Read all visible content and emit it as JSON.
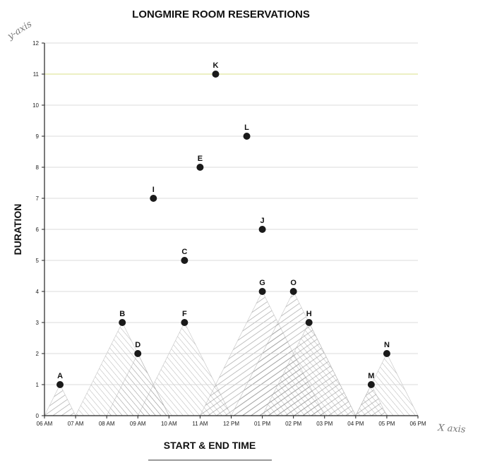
{
  "chart_data": {
    "type": "scatter",
    "title": "LONGMIRE ROOM RESERVATIONS",
    "xlabel": "START & END TIME",
    "ylabel": "DURATION",
    "x_ticks": [
      "06 AM",
      "07 AM",
      "08 AM",
      "09 AM",
      "10 AM",
      "11 AM",
      "12 PM",
      "01 PM",
      "02 PM",
      "03 PM",
      "04 PM",
      "05 PM",
      "06 PM"
    ],
    "xlim": [
      6,
      18
    ],
    "y_ticks": [
      0,
      1,
      2,
      3,
      4,
      5,
      6,
      7,
      8,
      9,
      10,
      11,
      12
    ],
    "ylim": [
      0,
      12
    ],
    "grid": "horizontal",
    "points": [
      {
        "label": "A",
        "x": 6.5,
        "y": 1
      },
      {
        "label": "B",
        "x": 8.5,
        "y": 3
      },
      {
        "label": "C",
        "x": 10.5,
        "y": 5
      },
      {
        "label": "D",
        "x": 9.0,
        "y": 2
      },
      {
        "label": "E",
        "x": 11.0,
        "y": 8
      },
      {
        "label": "F",
        "x": 10.5,
        "y": 3
      },
      {
        "label": "G",
        "x": 13.0,
        "y": 4
      },
      {
        "label": "H",
        "x": 14.5,
        "y": 3
      },
      {
        "label": "I",
        "x": 9.5,
        "y": 7
      },
      {
        "label": "J",
        "x": 13.0,
        "y": 6
      },
      {
        "label": "K",
        "x": 11.5,
        "y": 11
      },
      {
        "label": "L",
        "x": 12.5,
        "y": 9
      },
      {
        "label": "M",
        "x": 16.5,
        "y": 1
      },
      {
        "label": "N",
        "x": 17.0,
        "y": 2
      },
      {
        "label": "O",
        "x": 14.0,
        "y": 4
      }
    ]
  },
  "annotations": {
    "y_axis_note": "y-axis",
    "x_axis_note": "X axis"
  },
  "colors": {
    "point": "#1a1a1a",
    "grid": "#cfcfcf",
    "highlight_line": "#e6ecb0",
    "hatch": "#8a8a8a"
  }
}
